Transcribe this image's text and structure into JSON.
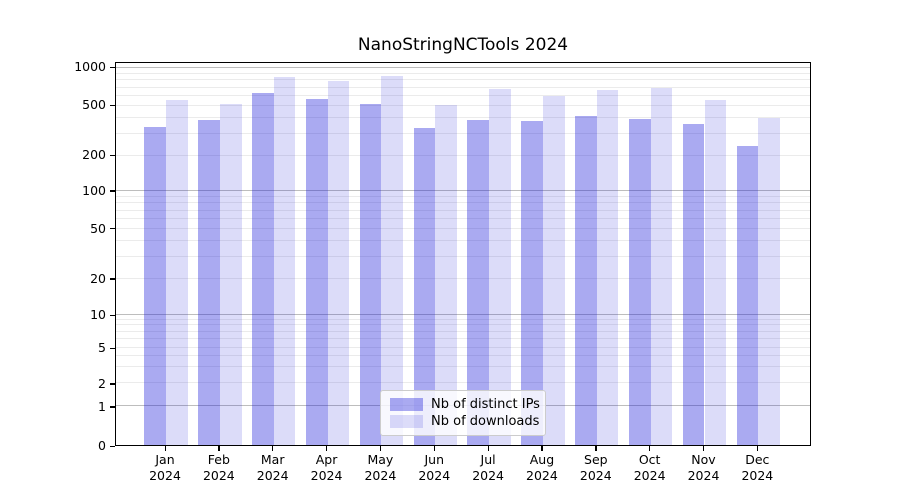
{
  "title": "NanoStringNCTools 2024",
  "chart_data": {
    "type": "bar",
    "title": "NanoStringNCTools 2024",
    "categories": [
      "Jan",
      "Feb",
      "Mar",
      "Apr",
      "May",
      "Jun",
      "Jul",
      "Aug",
      "Sep",
      "Oct",
      "Nov",
      "Dec"
    ],
    "category_year": "2024",
    "series": [
      {
        "name": "Nb of distinct IPs",
        "color": "rgba(20,20,215,0.36)",
        "values": [
          330,
          375,
          610,
          545,
          505,
          325,
          375,
          365,
          405,
          380,
          345,
          230
        ]
      },
      {
        "name": "Nb of downloads",
        "color": "rgba(20,20,215,0.15)",
        "values": [
          540,
          500,
          830,
          760,
          835,
          487,
          655,
          580,
          645,
          670,
          535,
          385
        ]
      }
    ],
    "xlabel": "",
    "ylabel": "",
    "yscale": "log-with-zero-baseline",
    "ylim": [
      0,
      1000
    ],
    "y_tick_labels": [
      1000,
      500,
      200,
      100,
      50,
      20,
      10,
      5,
      2,
      1,
      0
    ],
    "y_major_gridlines": [
      1000,
      100,
      10,
      1
    ],
    "y_minor_gridlines": [
      900,
      800,
      700,
      600,
      500,
      400,
      300,
      200,
      90,
      80,
      70,
      60,
      50,
      40,
      30,
      20,
      9,
      8,
      7,
      6,
      5,
      4,
      3,
      2
    ],
    "grid": true,
    "legend_position": "lower center"
  },
  "legend": {
    "items": [
      "Nb of distinct IPs",
      "Nb of downloads"
    ]
  },
  "colors": {
    "bar_distinct_ips": "rgba(20,20,215,0.36)",
    "bar_downloads": "rgba(20,20,215,0.15)",
    "grid_major": "#bdbdbd",
    "grid_minor": "#ebebeb",
    "spine": "#000000",
    "legend_border": "#cccccc",
    "text": "#000000"
  },
  "scale_anchors": {
    "values": [
      0,
      1,
      2,
      5,
      10,
      20,
      50,
      100,
      200,
      500,
      1000
    ],
    "fractions": [
      0,
      0.1023,
      0.1615,
      0.2552,
      0.3411,
      0.4349,
      0.5664,
      0.6641,
      0.7578,
      0.888,
      0.9857
    ]
  }
}
